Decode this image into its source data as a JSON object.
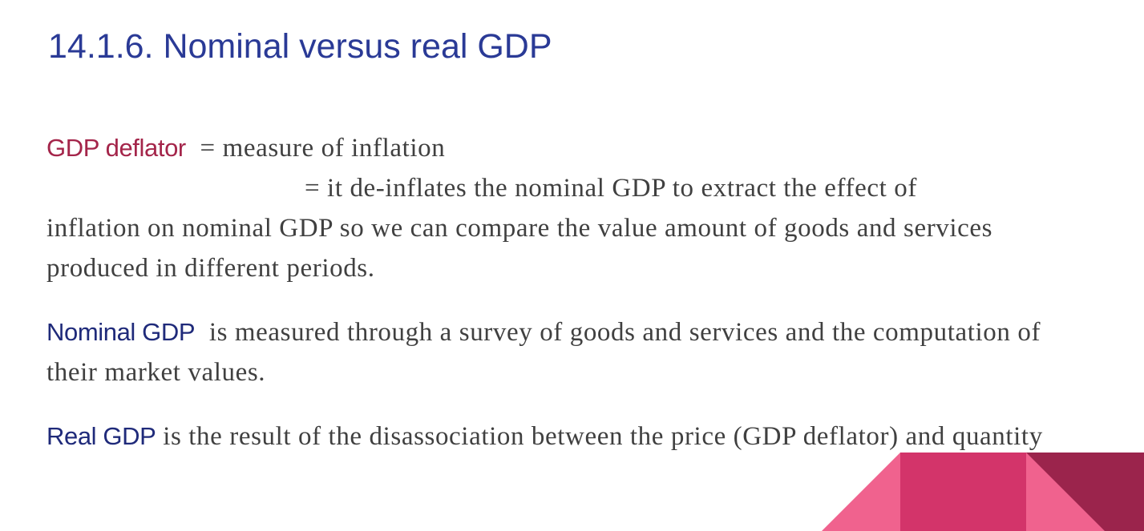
{
  "slide": {
    "title": "14.1.6. Nominal versus real GDP",
    "deflator": {
      "term": "GDP deflator",
      "line1": "= measure of inflation",
      "line2": "= it de-inflates the nominal GDP to extract the effect of",
      "line3": "inflation on nominal GDP so we can compare the value amount of goods and services produced in different periods."
    },
    "nominal": {
      "term": "Nominal GDP",
      "text": "is measured through a survey of goods and services and the computation of their market values."
    },
    "real": {
      "term": "Real GDP",
      "text": "is the result of the disassociation between the price (GDP deflator) and quantity"
    }
  },
  "colors": {
    "title": "#2a3a96",
    "term_red": "#a4254a",
    "term_blue": "#1f2a7a",
    "body_text": "#404040",
    "accent_light": "#f0628e",
    "accent_mid": "#d3346a",
    "accent_dark": "#9b244c"
  }
}
